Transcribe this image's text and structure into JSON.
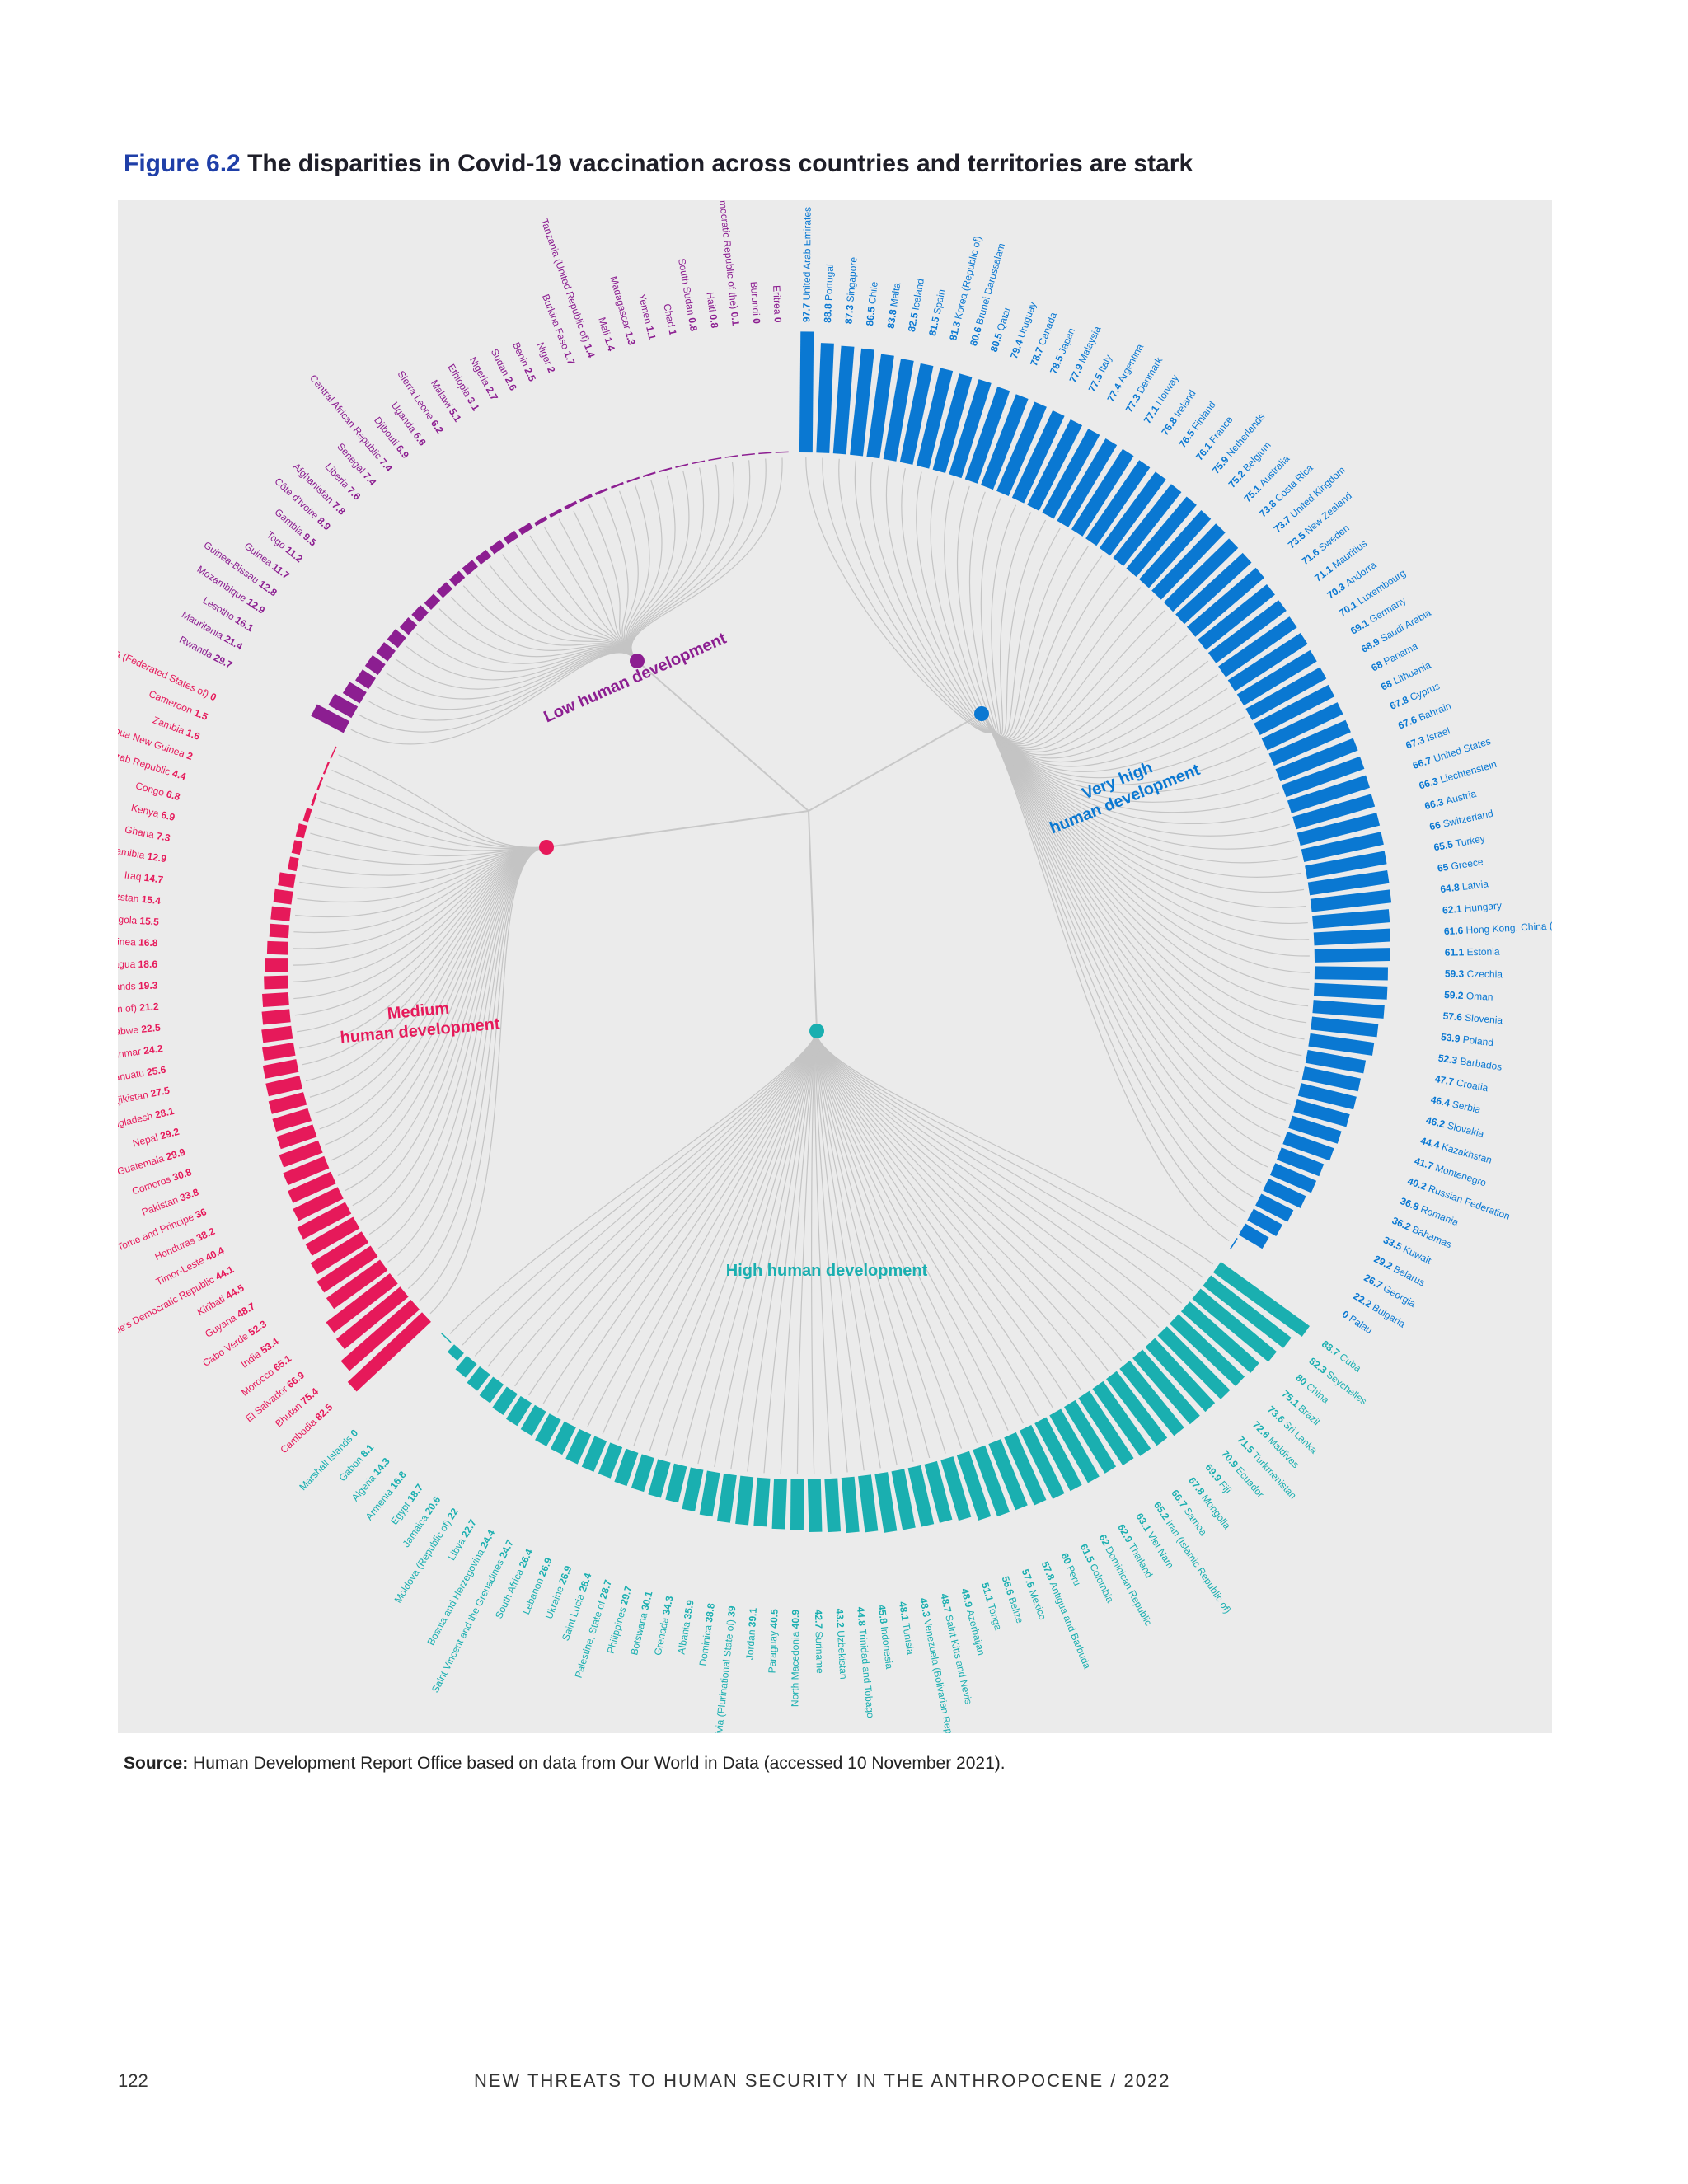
{
  "figure": {
    "number": "Figure 6.2",
    "title": "The disparities in Covid-19 vaccination across countries and territories are stark"
  },
  "source": {
    "label": "Source:",
    "text": "Human Development Report Office based on data from Our World in Data (accessed 10 November 2021)."
  },
  "footer": {
    "page_number": "122",
    "running_title": "NEW THREATS TO HUMAN SECURITY IN THE ANTHROPOCENE / 2022"
  },
  "chart_data": {
    "type": "bar",
    "layout": "radial-dendrogram",
    "value_range": [
      0,
      100
    ],
    "groups": [
      {
        "name_lines": [
          "Very high",
          "human development"
        ],
        "color": "#0a78d2",
        "items": [
          [
            "United Arab Emirates",
            97.7
          ],
          [
            "Portugal",
            88.8
          ],
          [
            "Singapore",
            87.3
          ],
          [
            "Chile",
            86.5
          ],
          [
            "Malta",
            83.8
          ],
          [
            "Iceland",
            82.5
          ],
          [
            "Spain",
            81.5
          ],
          [
            "Korea (Republic of)",
            81.3
          ],
          [
            "Brunei Darussalam",
            80.6
          ],
          [
            "Qatar",
            80.5
          ],
          [
            "Uruguay",
            79.4
          ],
          [
            "Canada",
            78.7
          ],
          [
            "Japan",
            78.5
          ],
          [
            "Malaysia",
            77.9
          ],
          [
            "Italy",
            77.5
          ],
          [
            "Argentina",
            77.4
          ],
          [
            "Denmark",
            77.3
          ],
          [
            "Norway",
            77.1
          ],
          [
            "Ireland",
            76.8
          ],
          [
            "Finland",
            76.5
          ],
          [
            "France",
            76.1
          ],
          [
            "Netherlands",
            75.9
          ],
          [
            "Belgium",
            75.2
          ],
          [
            "Australia",
            75.1
          ],
          [
            "Costa Rica",
            73.8
          ],
          [
            "United Kingdom",
            73.7
          ],
          [
            "New Zealand",
            73.5
          ],
          [
            "Sweden",
            71.6
          ],
          [
            "Mauritius",
            71.1
          ],
          [
            "Andorra",
            70.3
          ],
          [
            "Luxembourg",
            70.1
          ],
          [
            "Germany",
            69.1
          ],
          [
            "Saudi Arabia",
            68.9
          ],
          [
            "Panama",
            68
          ],
          [
            "Lithuania",
            68
          ],
          [
            "Cyprus",
            67.8
          ],
          [
            "Bahrain",
            67.6
          ],
          [
            "Israel",
            67.3
          ],
          [
            "United States",
            66.7
          ],
          [
            "Liechtenstein",
            66.3
          ],
          [
            "Austria",
            66.3
          ],
          [
            "Switzerland",
            66
          ],
          [
            "Turkey",
            65.5
          ],
          [
            "Greece",
            65
          ],
          [
            "Latvia",
            64.8
          ],
          [
            "Hungary",
            62.1
          ],
          [
            "Hong Kong, China (SAR)",
            61.6
          ],
          [
            "Estonia",
            61.1
          ],
          [
            "Czechia",
            59.3
          ],
          [
            "Oman",
            59.2
          ],
          [
            "Slovenia",
            57.6
          ],
          [
            "Poland",
            53.9
          ],
          [
            "Barbados",
            52.3
          ],
          [
            "Croatia",
            47.7
          ],
          [
            "Serbia",
            46.4
          ],
          [
            "Slovakia",
            46.2
          ],
          [
            "Kazakhstan",
            44.4
          ],
          [
            "Montenegro",
            41.7
          ],
          [
            "Russian Federation",
            40.2
          ],
          [
            "Romania",
            36.8
          ],
          [
            "Bahamas",
            36.2
          ],
          [
            "Kuwait",
            33.5
          ],
          [
            "Belarus",
            29.2
          ],
          [
            "Georgia",
            26.7
          ],
          [
            "Bulgaria",
            22.2
          ],
          [
            "Palau",
            0
          ]
        ]
      },
      {
        "name_lines": [
          "High human development"
        ],
        "color": "#1aafb0",
        "items": [
          [
            "Cuba",
            88.7
          ],
          [
            "Seychelles",
            82.3
          ],
          [
            "China",
            80
          ],
          [
            "Brazil",
            75.1
          ],
          [
            "Sri Lanka",
            73.6
          ],
          [
            "Maldives",
            72.6
          ],
          [
            "Turkmenistan",
            71.5
          ],
          [
            "Ecuador",
            70.9
          ],
          [
            "Fiji",
            69.9
          ],
          [
            "Mongolia",
            67.8
          ],
          [
            "Samoa",
            66.7
          ],
          [
            "Iran (Islamic Republic of)",
            65.2
          ],
          [
            "Viet Nam",
            63.1
          ],
          [
            "Thailand",
            62.9
          ],
          [
            "Dominican Republic",
            62
          ],
          [
            "Colombia",
            61.5
          ],
          [
            "Peru",
            60
          ],
          [
            "Antigua and Barbuda",
            57.8
          ],
          [
            "Mexico",
            57.5
          ],
          [
            "Belize",
            55.6
          ],
          [
            "Tonga",
            51.1
          ],
          [
            "Azerbaijan",
            48.9
          ],
          [
            "Saint Kitts and Nevis",
            48.7
          ],
          [
            "Venezuela (Bolivarian Republic of)",
            48.3
          ],
          [
            "Tunisia",
            48.1
          ],
          [
            "Indonesia",
            45.8
          ],
          [
            "Trinidad and Tobago",
            44.8
          ],
          [
            "Uzbekistan",
            43.2
          ],
          [
            "Suriname",
            42.7
          ],
          [
            "North Macedonia",
            40.9
          ],
          [
            "Paraguay",
            40.5
          ],
          [
            "Jordan",
            39.1
          ],
          [
            "Bolivia (Plurinational State of)",
            39
          ],
          [
            "Dominica",
            38.8
          ],
          [
            "Albania",
            35.9
          ],
          [
            "Grenada",
            34.3
          ],
          [
            "Botswana",
            30.1
          ],
          [
            "Philippines",
            29.7
          ],
          [
            "Palestine, State of",
            28.7
          ],
          [
            "Saint Lucia",
            28.4
          ],
          [
            "Ukraine",
            26.9
          ],
          [
            "Lebanon",
            26.9
          ],
          [
            "South Africa",
            26.4
          ],
          [
            "Saint Vincent and the Grenadines",
            24.7
          ],
          [
            "Bosnia and Herzegovina",
            24.4
          ],
          [
            "Libya",
            22.7
          ],
          [
            "Moldova (Republic of)",
            22
          ],
          [
            "Jamaica",
            20.6
          ],
          [
            "Egypt",
            18.7
          ],
          [
            "Armenia",
            16.8
          ],
          [
            "Algeria",
            14.3
          ],
          [
            "Gabon",
            8.1
          ],
          [
            "Marshall Islands",
            0
          ]
        ]
      },
      {
        "name_lines": [
          "Medium",
          "human development"
        ],
        "color": "#e6195a",
        "items": [
          [
            "Cambodia",
            82.5
          ],
          [
            "Bhutan",
            75.4
          ],
          [
            "El Salvador",
            66.9
          ],
          [
            "Morocco",
            65.1
          ],
          [
            "India",
            53.4
          ],
          [
            "Cabo Verde",
            52.3
          ],
          [
            "Guyana",
            48.7
          ],
          [
            "Kiribati",
            44.5
          ],
          [
            "Lao People's Democratic Republic",
            44.1
          ],
          [
            "Timor-Leste",
            40.4
          ],
          [
            "Honduras",
            38.2
          ],
          [
            "Sao Tome and Principe",
            36
          ],
          [
            "Pakistan",
            33.8
          ],
          [
            "Comoros",
            30.8
          ],
          [
            "Guatemala",
            29.9
          ],
          [
            "Nepal",
            29.2
          ],
          [
            "Bangladesh",
            28.1
          ],
          [
            "Tajikistan",
            27.5
          ],
          [
            "Vanuatu",
            25.6
          ],
          [
            "Myanmar",
            24.2
          ],
          [
            "Zimbabwe",
            22.5
          ],
          [
            "Eswatini (Kingdom of)",
            21.2
          ],
          [
            "Solomon Islands",
            19.3
          ],
          [
            "Nicaragua",
            18.6
          ],
          [
            "Equatorial Guinea",
            16.8
          ],
          [
            "Angola",
            15.5
          ],
          [
            "Kyrgyzstan",
            15.4
          ],
          [
            "Iraq",
            14.7
          ],
          [
            "Namibia",
            12.9
          ],
          [
            "Ghana",
            7.3
          ],
          [
            "Kenya",
            6.9
          ],
          [
            "Congo",
            6.8
          ],
          [
            "Syrian Arab Republic",
            4.4
          ],
          [
            "Papua New Guinea",
            2
          ],
          [
            "Zambia",
            1.6
          ],
          [
            "Cameroon",
            1.5
          ],
          [
            "Micronesia (Federated States of)",
            0
          ]
        ]
      },
      {
        "name_lines": [
          "Low human development"
        ],
        "color": "#8c1e91",
        "items": [
          [
            "Rwanda",
            29.7
          ],
          [
            "Mauritania",
            21.4
          ],
          [
            "Lesotho",
            16.1
          ],
          [
            "Mozambique",
            12.9
          ],
          [
            "Guinea-Bissau",
            12.8
          ],
          [
            "Guinea",
            11.7
          ],
          [
            "Togo",
            11.2
          ],
          [
            "Gambia",
            9.5
          ],
          [
            "Côte d'Ivoire",
            8.9
          ],
          [
            "Afghanistan",
            7.8
          ],
          [
            "Liberia",
            7.6
          ],
          [
            "Senegal",
            7.4
          ],
          [
            "Central African Republic",
            7.4
          ],
          [
            "Djibouti",
            6.9
          ],
          [
            "Uganda",
            6.6
          ],
          [
            "Sierra Leone",
            6.2
          ],
          [
            "Malawi",
            5.1
          ],
          [
            "Ethiopia",
            3.1
          ],
          [
            "Nigeria",
            2.7
          ],
          [
            "Sudan",
            2.6
          ],
          [
            "Benin",
            2.5
          ],
          [
            "Niger",
            2
          ],
          [
            "Burkina Faso",
            1.7
          ],
          [
            "Tanzania (United Republic of)",
            1.4
          ],
          [
            "Mali",
            1.4
          ],
          [
            "Madagascar",
            1.3
          ],
          [
            "Yemen",
            1.1
          ],
          [
            "Chad",
            1
          ],
          [
            "South Sudan",
            0.8
          ],
          [
            "Haiti",
            0.8
          ],
          [
            "Congo (Democratic Republic of the)",
            0.1
          ],
          [
            "Burundi",
            0
          ],
          [
            "Eritrea",
            0
          ]
        ]
      }
    ]
  }
}
